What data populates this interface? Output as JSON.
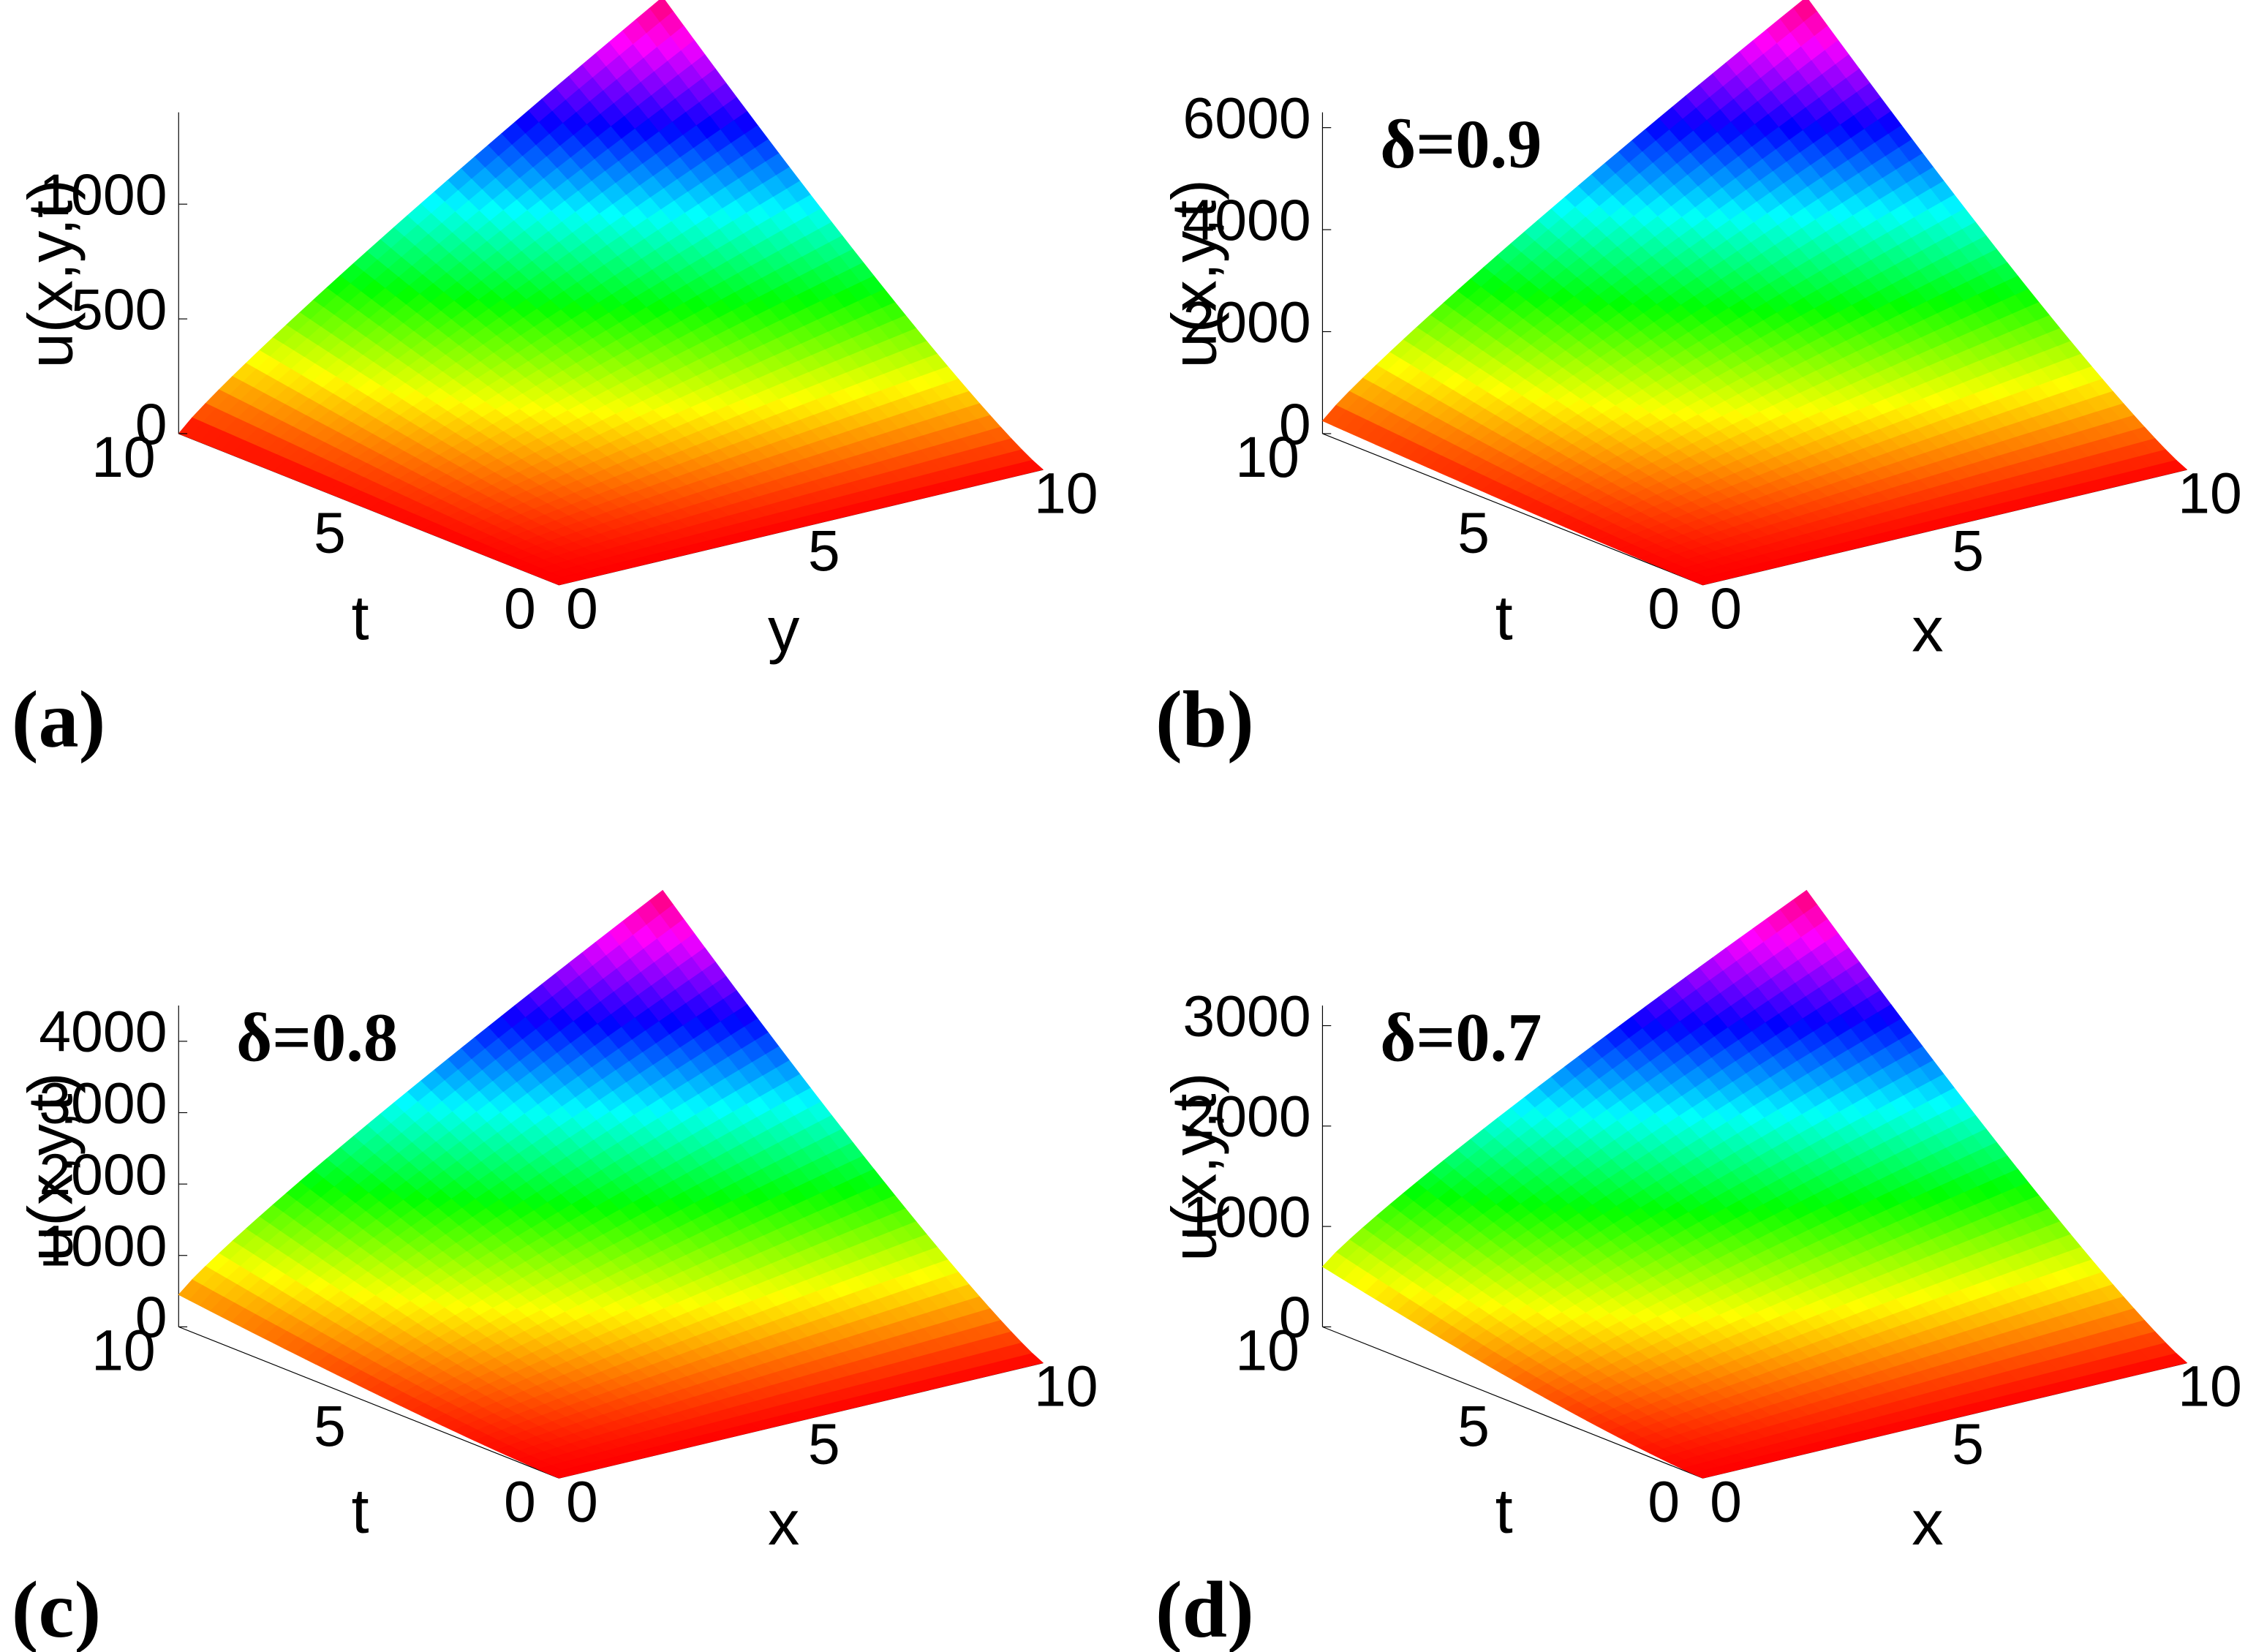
{
  "chart_data": [
    {
      "type": "surface",
      "panel_label": "(a)",
      "annotation": "",
      "xlabel": "y",
      "ylabel": "t",
      "zlabel": "u(x,y,t)",
      "x_ticks": [
        "0",
        "5",
        "10"
      ],
      "t_ticks": [
        "0",
        "5",
        "10"
      ],
      "z_ticks": [
        "0",
        "500",
        "1000"
      ],
      "x_range": [
        0,
        10
      ],
      "t_range": [
        0,
        10
      ],
      "z_range": [
        0,
        1400
      ],
      "surface": {
        "u_at_x0_t10": 0,
        "u_at_x10_t0": 0,
        "u_at_x10_t10": 1400
      },
      "colormap": "hsv"
    },
    {
      "type": "surface",
      "panel_label": "(b)",
      "annotation": "δ=0.9",
      "xlabel": "x",
      "ylabel": "t",
      "zlabel": "u(x,y,t)",
      "x_ticks": [
        "0",
        "5",
        "10"
      ],
      "t_ticks": [
        "0",
        "5",
        "10"
      ],
      "z_ticks": [
        "0",
        "2000",
        "4000",
        "6000"
      ],
      "x_range": [
        0,
        10
      ],
      "t_range": [
        0,
        10
      ],
      "z_range": [
        0,
        6300
      ],
      "surface": {
        "u_at_x0_t10": 250,
        "u_at_x10_t0": 0,
        "u_at_x10_t10": 6300
      },
      "colormap": "hsv"
    },
    {
      "type": "surface",
      "panel_label": "(c)",
      "annotation": "δ=0.8",
      "xlabel": "x",
      "ylabel": "t",
      "zlabel": "u(x,y,t)",
      "x_ticks": [
        "0",
        "5",
        "10"
      ],
      "t_ticks": [
        "0",
        "5",
        "10"
      ],
      "z_ticks": [
        "0",
        "1000",
        "2000",
        "3000",
        "4000"
      ],
      "x_range": [
        0,
        10
      ],
      "t_range": [
        0,
        10
      ],
      "z_range": [
        0,
        4500
      ],
      "surface": {
        "u_at_x0_t10": 450,
        "u_at_x10_t0": 0,
        "u_at_x10_t10": 4500
      },
      "colormap": "hsv"
    },
    {
      "type": "surface",
      "panel_label": "(d)",
      "annotation": "δ=0.7",
      "xlabel": "x",
      "ylabel": "t",
      "zlabel": "u(x,y,t)",
      "x_ticks": [
        "0",
        "5",
        "10"
      ],
      "t_ticks": [
        "0",
        "5",
        "10"
      ],
      "z_ticks": [
        "0",
        "1000",
        "2000",
        "3000"
      ],
      "x_range": [
        0,
        10
      ],
      "t_range": [
        0,
        10
      ],
      "z_range": [
        0,
        3200
      ],
      "surface": {
        "u_at_x0_t10": 600,
        "u_at_x10_t0": 0,
        "u_at_x10_t10": 3200
      },
      "colormap": "hsv"
    }
  ]
}
